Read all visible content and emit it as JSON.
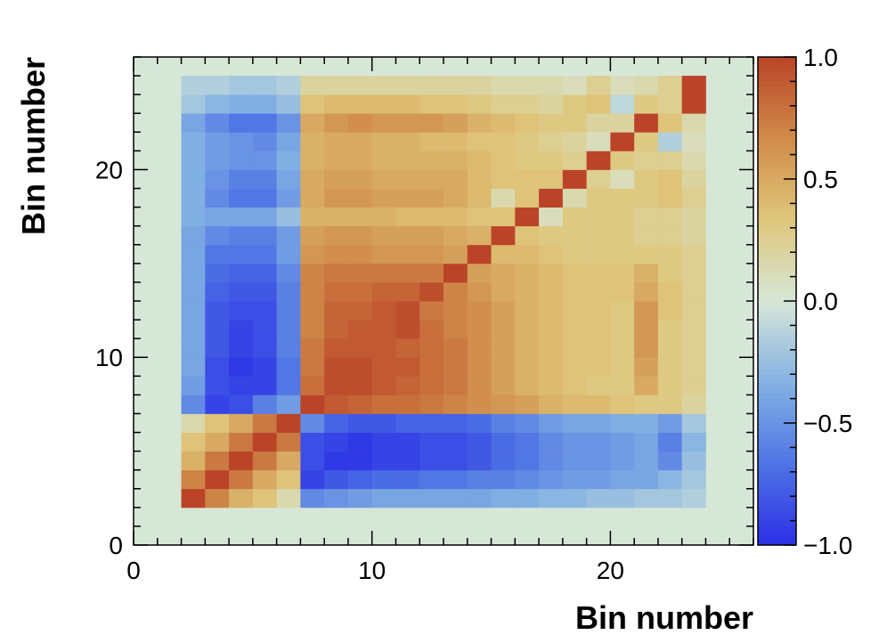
{
  "chart_data": {
    "type": "heatmap",
    "title": "",
    "xlabel": "Bin number",
    "ylabel": "Bin number",
    "xlim": [
      0,
      26
    ],
    "ylim": [
      0,
      26
    ],
    "x_ticks": [
      0,
      10,
      20
    ],
    "y_ticks": [
      0,
      10,
      20
    ],
    "x_tick_labels": [
      "0",
      "10",
      "20"
    ],
    "y_tick_labels": [
      "0",
      "10",
      "20"
    ],
    "bin_range": [
      2,
      24
    ],
    "background_value": 0.0,
    "zlim": [
      -1.0,
      1.0
    ],
    "colorbar_ticks": [
      1.0,
      0.5,
      0.0,
      -0.5,
      -1.0
    ],
    "colorbar_tick_labels": [
      "1.0",
      "0.5",
      "0.0",
      "−0.5",
      "−1.0"
    ],
    "colormap": [
      "#2B2FE6",
      "#4F74E4",
      "#84B1E3",
      "#D6E7D7",
      "#DFC67A",
      "#D08B4A",
      "#BB4428"
    ],
    "rows": [
      {
        "y": 2,
        "v": [
          1.0,
          0.7,
          0.45,
          0.35,
          0.15,
          -0.55,
          -0.5,
          -0.45,
          -0.4,
          -0.4,
          -0.4,
          -0.4,
          -0.4,
          -0.35,
          -0.35,
          -0.3,
          -0.3,
          -0.25,
          -0.25,
          -0.2,
          -0.2,
          -0.15
        ]
      },
      {
        "y": 3,
        "v": [
          0.7,
          1.0,
          0.75,
          0.5,
          0.35,
          -0.9,
          -0.8,
          -0.75,
          -0.7,
          -0.7,
          -0.65,
          -0.65,
          -0.6,
          -0.6,
          -0.55,
          -0.5,
          -0.45,
          -0.45,
          -0.4,
          -0.4,
          -0.3,
          -0.2
        ]
      },
      {
        "y": 4,
        "v": [
          0.45,
          0.75,
          1.0,
          0.75,
          0.5,
          -0.85,
          -0.95,
          -0.95,
          -0.9,
          -0.9,
          -0.85,
          -0.85,
          -0.8,
          -0.7,
          -0.65,
          -0.55,
          -0.5,
          -0.5,
          -0.45,
          -0.4,
          -0.55,
          -0.25
        ]
      },
      {
        "y": 5,
        "v": [
          0.35,
          0.5,
          0.75,
          1.0,
          0.75,
          -0.85,
          -0.9,
          -0.95,
          -0.9,
          -0.9,
          -0.85,
          -0.85,
          -0.8,
          -0.7,
          -0.65,
          -0.55,
          -0.5,
          -0.5,
          -0.45,
          -0.4,
          -0.6,
          -0.3
        ]
      },
      {
        "y": 6,
        "v": [
          0.15,
          0.35,
          0.5,
          0.75,
          1.0,
          -0.55,
          -0.75,
          -0.8,
          -0.8,
          -0.75,
          -0.75,
          -0.75,
          -0.7,
          -0.6,
          -0.55,
          -0.45,
          -0.4,
          -0.4,
          -0.35,
          -0.35,
          -0.45,
          -0.2
        ]
      },
      {
        "y": 7,
        "v": [
          -0.55,
          -0.9,
          -0.85,
          -0.6,
          -0.45,
          1.0,
          0.9,
          0.85,
          0.8,
          0.8,
          0.75,
          0.7,
          0.65,
          0.6,
          0.55,
          0.45,
          0.4,
          0.4,
          0.35,
          0.3,
          0.3,
          0.2
        ]
      },
      {
        "y": 8,
        "v": [
          -0.45,
          -0.85,
          -0.9,
          -0.9,
          -0.65,
          0.8,
          0.95,
          0.95,
          0.9,
          0.85,
          0.8,
          0.75,
          0.65,
          0.55,
          0.45,
          0.4,
          0.35,
          0.3,
          0.3,
          0.5,
          0.3,
          0.25
        ]
      },
      {
        "y": 9,
        "v": [
          -0.4,
          -0.85,
          -0.95,
          -0.9,
          -0.65,
          0.75,
          0.95,
          0.95,
          0.9,
          0.9,
          0.8,
          0.75,
          0.65,
          0.55,
          0.45,
          0.4,
          0.35,
          0.35,
          0.3,
          0.55,
          0.3,
          0.25
        ]
      },
      {
        "y": 10,
        "v": [
          -0.4,
          -0.8,
          -0.9,
          -0.85,
          -0.6,
          0.75,
          0.9,
          0.9,
          0.9,
          0.85,
          0.8,
          0.75,
          0.65,
          0.55,
          0.45,
          0.4,
          0.35,
          0.35,
          0.3,
          0.6,
          0.3,
          0.25
        ]
      },
      {
        "y": 11,
        "v": [
          -0.4,
          -0.8,
          -0.9,
          -0.85,
          -0.6,
          0.7,
          0.85,
          0.9,
          0.9,
          0.95,
          0.8,
          0.7,
          0.65,
          0.55,
          0.45,
          0.4,
          0.35,
          0.35,
          0.3,
          0.6,
          0.3,
          0.25
        ]
      },
      {
        "y": 12,
        "v": [
          -0.4,
          -0.8,
          -0.85,
          -0.85,
          -0.6,
          0.7,
          0.85,
          0.85,
          0.9,
          0.95,
          0.75,
          0.7,
          0.65,
          0.55,
          0.45,
          0.4,
          0.35,
          0.35,
          0.3,
          0.6,
          0.35,
          0.25
        ]
      },
      {
        "y": 13,
        "v": [
          -0.4,
          -0.75,
          -0.8,
          -0.8,
          -0.6,
          0.7,
          0.8,
          0.8,
          0.85,
          0.85,
          0.95,
          0.7,
          0.6,
          0.5,
          0.45,
          0.4,
          0.35,
          0.35,
          0.35,
          0.5,
          0.35,
          0.25
        ]
      },
      {
        "y": 14,
        "v": [
          -0.4,
          -0.7,
          -0.75,
          -0.75,
          -0.55,
          0.7,
          0.75,
          0.75,
          0.75,
          0.75,
          0.75,
          1.0,
          0.55,
          0.5,
          0.45,
          0.4,
          0.35,
          0.35,
          0.35,
          0.45,
          0.3,
          0.25
        ]
      },
      {
        "y": 15,
        "v": [
          -0.4,
          -0.65,
          -0.65,
          -0.65,
          -0.45,
          0.6,
          0.65,
          0.65,
          0.6,
          0.6,
          0.6,
          0.55,
          1.0,
          0.4,
          0.4,
          0.35,
          0.3,
          0.3,
          0.3,
          0.3,
          0.3,
          0.25
        ]
      },
      {
        "y": 16,
        "v": [
          -0.4,
          -0.55,
          -0.6,
          -0.6,
          -0.45,
          0.55,
          0.6,
          0.6,
          0.55,
          0.55,
          0.55,
          0.5,
          0.45,
          1.0,
          0.35,
          0.3,
          0.3,
          0.3,
          0.3,
          0.25,
          0.25,
          0.2
        ]
      },
      {
        "y": 17,
        "v": [
          -0.35,
          -0.4,
          -0.4,
          -0.4,
          -0.25,
          0.45,
          0.45,
          0.45,
          0.45,
          0.4,
          0.4,
          0.4,
          0.35,
          0.35,
          1.0,
          0.1,
          0.3,
          0.3,
          0.3,
          0.25,
          0.25,
          0.2
        ]
      },
      {
        "y": 18,
        "v": [
          -0.35,
          -0.55,
          -0.65,
          -0.65,
          -0.45,
          0.5,
          0.6,
          0.6,
          0.55,
          0.55,
          0.55,
          0.5,
          0.4,
          0.15,
          0.35,
          1.0,
          0.15,
          0.3,
          0.3,
          0.3,
          0.35,
          0.25
        ]
      },
      {
        "y": 19,
        "v": [
          -0.35,
          -0.5,
          -0.6,
          -0.6,
          -0.4,
          0.5,
          0.55,
          0.55,
          0.5,
          0.5,
          0.5,
          0.5,
          0.4,
          0.35,
          0.35,
          0.35,
          1.0,
          0.25,
          0.1,
          0.3,
          0.35,
          0.2
        ]
      },
      {
        "y": 20,
        "v": [
          -0.35,
          -0.45,
          -0.5,
          -0.5,
          -0.35,
          0.45,
          0.5,
          0.5,
          0.45,
          0.45,
          0.45,
          0.45,
          0.4,
          0.35,
          0.3,
          0.3,
          0.25,
          1.0,
          0.3,
          0.25,
          0.25,
          0.15
        ]
      },
      {
        "y": 21,
        "v": [
          -0.35,
          -0.45,
          -0.5,
          -0.55,
          -0.4,
          0.45,
          0.5,
          0.5,
          0.45,
          0.45,
          0.4,
          0.4,
          0.35,
          0.35,
          0.3,
          0.25,
          0.2,
          0.1,
          1.0,
          0.3,
          -0.15,
          0.1
        ]
      },
      {
        "y": 22,
        "v": [
          -0.4,
          -0.55,
          -0.65,
          -0.65,
          -0.5,
          0.5,
          0.6,
          0.65,
          0.6,
          0.6,
          0.6,
          0.55,
          0.45,
          0.4,
          0.35,
          0.3,
          0.3,
          0.2,
          0.2,
          1.0,
          0.35,
          0.15
        ]
      },
      {
        "y": 23,
        "v": [
          -0.2,
          -0.3,
          -0.35,
          -0.35,
          -0.25,
          0.35,
          0.4,
          0.4,
          0.4,
          0.4,
          0.35,
          0.35,
          0.3,
          0.25,
          0.25,
          0.2,
          0.3,
          0.35,
          -0.1,
          0.3,
          0.25,
          1.0
        ]
      },
      {
        "y": 24,
        "v": [
          -0.15,
          -0.15,
          -0.2,
          -0.2,
          -0.15,
          0.2,
          0.2,
          0.2,
          0.2,
          0.2,
          0.2,
          0.2,
          0.2,
          0.15,
          0.15,
          0.15,
          0.1,
          0.25,
          0.1,
          0.15,
          0.25,
          1.0
        ]
      }
    ]
  }
}
